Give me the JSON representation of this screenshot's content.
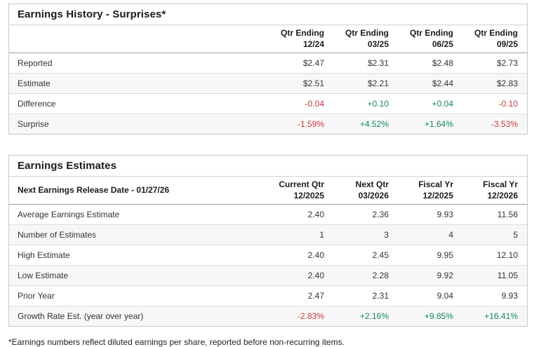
{
  "colors": {
    "positive": "#15865e",
    "negative": "#c43a3e"
  },
  "earnings_history": {
    "title": "Earnings History - Surprises*",
    "columns": [
      {
        "line1": "Qtr Ending",
        "line2": "12/24"
      },
      {
        "line1": "Qtr Ending",
        "line2": "03/25"
      },
      {
        "line1": "Qtr Ending",
        "line2": "06/25"
      },
      {
        "line1": "Qtr Ending",
        "line2": "09/25"
      }
    ],
    "rows": [
      {
        "label": "Reported",
        "values": [
          "$2.47",
          "$2.31",
          "$2.48",
          "$2.73"
        ],
        "sentiment": [
          "",
          "",
          "",
          ""
        ]
      },
      {
        "label": "Estimate",
        "values": [
          "$2.51",
          "$2.21",
          "$2.44",
          "$2.83"
        ],
        "sentiment": [
          "",
          "",
          "",
          ""
        ]
      },
      {
        "label": "Difference",
        "values": [
          "-0.04",
          "+0.10",
          "+0.04",
          "-0.10"
        ],
        "sentiment": [
          "negative",
          "positive",
          "positive",
          "negative"
        ]
      },
      {
        "label": "Surprise",
        "values": [
          "-1.59%",
          "+4.52%",
          "+1.64%",
          "-3.53%"
        ],
        "sentiment": [
          "negative",
          "positive",
          "positive",
          "negative"
        ]
      }
    ]
  },
  "earnings_estimates": {
    "title": "Earnings Estimates",
    "release_date_label": "Next Earnings Release Date - 01/27/26",
    "columns": [
      {
        "line1": "Current Qtr",
        "line2": "12/2025"
      },
      {
        "line1": "Next Qtr",
        "line2": "03/2026"
      },
      {
        "line1": "Fiscal Yr",
        "line2": "12/2025"
      },
      {
        "line1": "Fiscal Yr",
        "line2": "12/2026"
      }
    ],
    "rows": [
      {
        "label": "Average Earnings Estimate",
        "values": [
          "2.40",
          "2.36",
          "9.93",
          "11.56"
        ],
        "sentiment": [
          "",
          "",
          "",
          ""
        ]
      },
      {
        "label": "Number of Estimates",
        "values": [
          "1",
          "3",
          "4",
          "5"
        ],
        "sentiment": [
          "",
          "",
          "",
          ""
        ]
      },
      {
        "label": "High Estimate",
        "values": [
          "2.40",
          "2.45",
          "9.95",
          "12.10"
        ],
        "sentiment": [
          "",
          "",
          "",
          ""
        ]
      },
      {
        "label": "Low Estimate",
        "values": [
          "2.40",
          "2.28",
          "9.92",
          "11.05"
        ],
        "sentiment": [
          "",
          "",
          "",
          ""
        ]
      },
      {
        "label": "Prior Year",
        "values": [
          "2.47",
          "2.31",
          "9.04",
          "9.93"
        ],
        "sentiment": [
          "",
          "",
          "",
          ""
        ]
      },
      {
        "label": "Growth Rate Est. (year over year)",
        "values": [
          "-2.83%",
          "+2.16%",
          "+9.85%",
          "+16.41%"
        ],
        "sentiment": [
          "negative",
          "positive",
          "positive",
          "positive"
        ]
      }
    ]
  },
  "footnote": "*Earnings numbers reflect diluted earnings per share, reported before non-recurring items."
}
